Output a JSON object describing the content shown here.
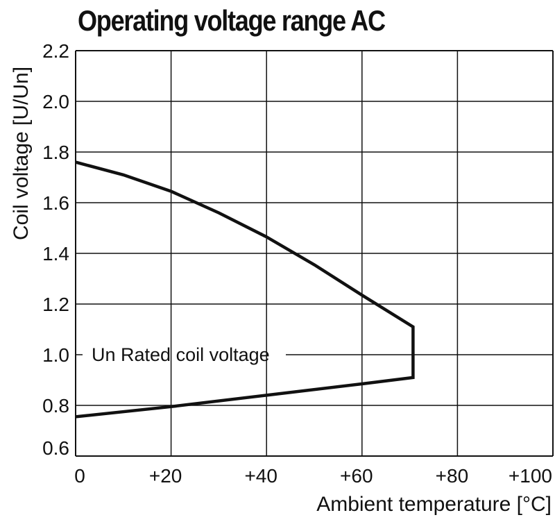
{
  "chart_data": {
    "type": "line",
    "title": "Operating voltage range AC",
    "xlabel": "Ambient temperature [°C]",
    "ylabel": "Coil voltage [U/Un]",
    "xlim": [
      0,
      100
    ],
    "ylim": [
      0.6,
      2.2
    ],
    "x_ticks": [
      0,
      20,
      40,
      60,
      80,
      100
    ],
    "x_tick_labels": [
      "0",
      "+20",
      "+40",
      "+60",
      "+80",
      "+100"
    ],
    "y_ticks": [
      0.6,
      0.8,
      1.0,
      1.2,
      1.4,
      1.6,
      1.8,
      2.0,
      2.2
    ],
    "y_tick_labels": [
      "0.6",
      "0.8",
      "1.0",
      "1.2",
      "1.4",
      "1.6",
      "1.8",
      "2.0",
      "2.2"
    ],
    "grid": true,
    "annotation": {
      "text": "Un Rated coil voltage",
      "y": 1.0
    },
    "series": [
      {
        "x": [
          0,
          10,
          20,
          30,
          40,
          50,
          60,
          70.7,
          70.7,
          60,
          40,
          20,
          0
        ],
        "y": [
          1.76,
          1.71,
          1.645,
          1.56,
          1.465,
          1.355,
          1.235,
          1.11,
          0.91,
          0.885,
          0.84,
          0.795,
          0.755
        ]
      }
    ]
  }
}
